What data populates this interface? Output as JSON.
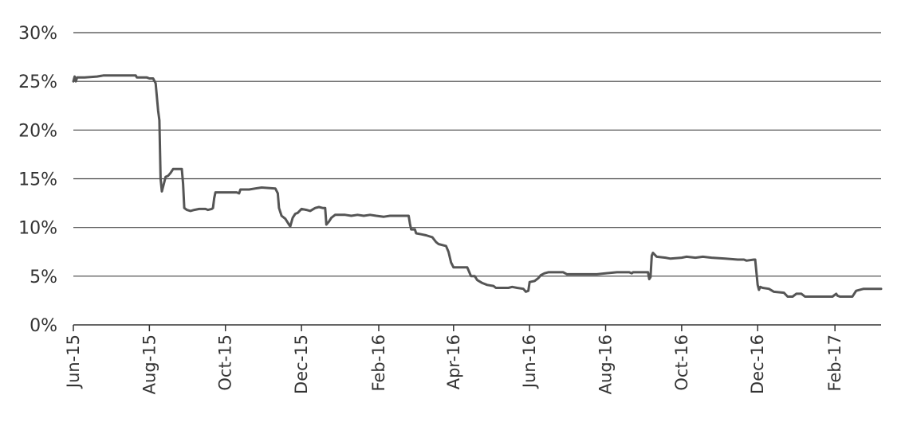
{
  "chart_data": {
    "type": "line",
    "title": "",
    "xlabel": "",
    "ylabel": "",
    "ylim": [
      0,
      30
    ],
    "xlim": [
      "2015-06-01",
      "2017-03-10"
    ],
    "grid": "horizontal",
    "y_ticks": [
      {
        "value": 0,
        "label": "0%"
      },
      {
        "value": 5,
        "label": "5%"
      },
      {
        "value": 10,
        "label": "10%"
      },
      {
        "value": 15,
        "label": "15%"
      },
      {
        "value": 20,
        "label": "20%"
      },
      {
        "value": 25,
        "label": "25%"
      },
      {
        "value": 30,
        "label": "30%"
      }
    ],
    "x_ticks": [
      {
        "date": "2015-06-01",
        "label": "Jun-15"
      },
      {
        "date": "2015-08-01",
        "label": "Aug-15"
      },
      {
        "date": "2015-10-01",
        "label": "Oct-15"
      },
      {
        "date": "2015-12-01",
        "label": "Dec-15"
      },
      {
        "date": "2016-02-01",
        "label": "Feb-16"
      },
      {
        "date": "2016-04-01",
        "label": "Apr-16"
      },
      {
        "date": "2016-06-01",
        "label": "Jun-16"
      },
      {
        "date": "2016-08-01",
        "label": "Aug-16"
      },
      {
        "date": "2016-10-01",
        "label": "Oct-16"
      },
      {
        "date": "2016-12-01",
        "label": "Dec-16"
      },
      {
        "date": "2017-02-01",
        "label": "Feb-17"
      }
    ],
    "series": [
      {
        "color": "#555555",
        "points": [
          [
            "2015-06-01",
            25.0
          ],
          [
            "2015-06-02",
            25.5
          ],
          [
            "2015-06-03",
            25.0
          ],
          [
            "2015-06-04",
            25.4
          ],
          [
            "2015-06-10",
            25.4
          ],
          [
            "2015-06-20",
            25.5
          ],
          [
            "2015-06-25",
            25.6
          ],
          [
            "2015-07-15",
            25.6
          ],
          [
            "2015-07-21",
            25.6
          ],
          [
            "2015-07-22",
            25.4
          ],
          [
            "2015-07-30",
            25.4
          ],
          [
            "2015-08-01",
            25.3
          ],
          [
            "2015-08-04",
            25.3
          ],
          [
            "2015-08-06",
            24.8
          ],
          [
            "2015-08-08",
            22.0
          ],
          [
            "2015-08-09",
            21.0
          ],
          [
            "2015-08-10",
            15.0
          ],
          [
            "2015-08-11",
            13.7
          ],
          [
            "2015-08-12",
            14.2
          ],
          [
            "2015-08-14",
            15.2
          ],
          [
            "2015-08-16",
            15.3
          ],
          [
            "2015-08-18",
            15.6
          ],
          [
            "2015-08-20",
            16.0
          ],
          [
            "2015-08-25",
            16.0
          ],
          [
            "2015-08-27",
            16.0
          ],
          [
            "2015-08-28",
            14.5
          ],
          [
            "2015-08-29",
            12.0
          ],
          [
            "2015-08-31",
            11.8
          ],
          [
            "2015-09-03",
            11.7
          ],
          [
            "2015-09-06",
            11.8
          ],
          [
            "2015-09-10",
            11.9
          ],
          [
            "2015-09-15",
            11.9
          ],
          [
            "2015-09-17",
            11.8
          ],
          [
            "2015-09-20",
            11.9
          ],
          [
            "2015-09-21",
            12.0
          ],
          [
            "2015-09-22",
            13.0
          ],
          [
            "2015-09-23",
            13.6
          ],
          [
            "2015-09-30",
            13.6
          ],
          [
            "2015-10-05",
            13.6
          ],
          [
            "2015-10-10",
            13.6
          ],
          [
            "2015-10-12",
            13.5
          ],
          [
            "2015-10-13",
            13.9
          ],
          [
            "2015-10-20",
            13.9
          ],
          [
            "2015-10-25",
            14.0
          ],
          [
            "2015-10-30",
            14.1
          ],
          [
            "2015-11-10",
            14.0
          ],
          [
            "2015-11-12",
            13.5
          ],
          [
            "2015-11-13",
            12.0
          ],
          [
            "2015-11-15",
            11.2
          ],
          [
            "2015-11-18",
            10.9
          ],
          [
            "2015-11-20",
            10.5
          ],
          [
            "2015-11-22",
            10.1
          ],
          [
            "2015-11-24",
            11.0
          ],
          [
            "2015-11-26",
            11.4
          ],
          [
            "2015-11-28",
            11.5
          ],
          [
            "2015-12-01",
            11.9
          ],
          [
            "2015-12-05",
            11.8
          ],
          [
            "2015-12-08",
            11.7
          ],
          [
            "2015-12-12",
            12.0
          ],
          [
            "2015-12-15",
            12.1
          ],
          [
            "2015-12-18",
            12.0
          ],
          [
            "2015-12-20",
            12.0
          ],
          [
            "2015-12-21",
            10.3
          ],
          [
            "2015-12-23",
            10.6
          ],
          [
            "2015-12-25",
            11.0
          ],
          [
            "2015-12-28",
            11.3
          ],
          [
            "2016-01-05",
            11.3
          ],
          [
            "2016-01-10",
            11.2
          ],
          [
            "2016-01-15",
            11.3
          ],
          [
            "2016-01-20",
            11.2
          ],
          [
            "2016-01-25",
            11.3
          ],
          [
            "2016-01-30",
            11.2
          ],
          [
            "2016-02-05",
            11.1
          ],
          [
            "2016-02-10",
            11.2
          ],
          [
            "2016-02-25",
            11.2
          ],
          [
            "2016-02-26",
            10.4
          ],
          [
            "2016-02-27",
            9.8
          ],
          [
            "2016-03-01",
            9.8
          ],
          [
            "2016-03-02",
            9.4
          ],
          [
            "2016-03-06",
            9.3
          ],
          [
            "2016-03-10",
            9.2
          ],
          [
            "2016-03-15",
            9.0
          ],
          [
            "2016-03-18",
            8.5
          ],
          [
            "2016-03-20",
            8.3
          ],
          [
            "2016-03-26",
            8.1
          ],
          [
            "2016-03-28",
            7.5
          ],
          [
            "2016-03-30",
            6.4
          ],
          [
            "2016-04-01",
            5.9
          ],
          [
            "2016-04-08",
            5.9
          ],
          [
            "2016-04-12",
            5.9
          ],
          [
            "2016-04-13",
            5.6
          ],
          [
            "2016-04-15",
            5.0
          ],
          [
            "2016-04-18",
            5.0
          ],
          [
            "2016-04-20",
            4.6
          ],
          [
            "2016-04-24",
            4.3
          ],
          [
            "2016-04-28",
            4.1
          ],
          [
            "2016-05-03",
            4.0
          ],
          [
            "2016-05-05",
            3.8
          ],
          [
            "2016-05-15",
            3.8
          ],
          [
            "2016-05-18",
            3.9
          ],
          [
            "2016-05-22",
            3.8
          ],
          [
            "2016-05-27",
            3.7
          ],
          [
            "2016-05-29",
            3.4
          ],
          [
            "2016-05-31",
            3.5
          ],
          [
            "2016-06-01",
            4.4
          ],
          [
            "2016-06-05",
            4.5
          ],
          [
            "2016-06-08",
            4.8
          ],
          [
            "2016-06-10",
            5.1
          ],
          [
            "2016-06-13",
            5.3
          ],
          [
            "2016-06-16",
            5.4
          ],
          [
            "2016-06-28",
            5.4
          ],
          [
            "2016-07-01",
            5.2
          ],
          [
            "2016-07-15",
            5.2
          ],
          [
            "2016-07-25",
            5.2
          ],
          [
            "2016-08-01",
            5.3
          ],
          [
            "2016-08-10",
            5.4
          ],
          [
            "2016-08-20",
            5.4
          ],
          [
            "2016-08-22",
            5.3
          ],
          [
            "2016-08-23",
            5.4
          ],
          [
            "2016-09-04",
            5.4
          ],
          [
            "2016-09-05",
            4.7
          ],
          [
            "2016-09-06",
            4.9
          ],
          [
            "2016-09-07",
            7.1
          ],
          [
            "2016-09-08",
            7.4
          ],
          [
            "2016-09-11",
            7.0
          ],
          [
            "2016-09-18",
            6.9
          ],
          [
            "2016-09-22",
            6.8
          ],
          [
            "2016-10-01",
            6.9
          ],
          [
            "2016-10-05",
            7.0
          ],
          [
            "2016-10-12",
            6.9
          ],
          [
            "2016-10-18",
            7.0
          ],
          [
            "2016-10-25",
            6.9
          ],
          [
            "2016-11-05",
            6.8
          ],
          [
            "2016-11-15",
            6.7
          ],
          [
            "2016-11-20",
            6.7
          ],
          [
            "2016-11-22",
            6.6
          ],
          [
            "2016-11-28",
            6.7
          ],
          [
            "2016-11-29",
            6.7
          ],
          [
            "2016-12-01",
            4.1
          ],
          [
            "2016-12-02",
            3.6
          ],
          [
            "2016-12-03",
            3.9
          ],
          [
            "2016-12-05",
            3.8
          ],
          [
            "2016-12-10",
            3.7
          ],
          [
            "2016-12-14",
            3.4
          ],
          [
            "2016-12-22",
            3.3
          ],
          [
            "2016-12-25",
            2.9
          ],
          [
            "2016-12-29",
            2.9
          ],
          [
            "2017-01-01",
            3.2
          ],
          [
            "2017-01-05",
            3.2
          ],
          [
            "2017-01-08",
            2.9
          ],
          [
            "2017-01-15",
            2.9
          ],
          [
            "2017-01-30",
            2.9
          ],
          [
            "2017-02-02",
            3.2
          ],
          [
            "2017-02-03",
            3.0
          ],
          [
            "2017-02-05",
            2.9
          ],
          [
            "2017-02-15",
            2.9
          ],
          [
            "2017-02-18",
            3.5
          ],
          [
            "2017-02-24",
            3.7
          ],
          [
            "2017-03-10",
            3.7
          ]
        ]
      }
    ]
  },
  "colors": {
    "line": "#555555",
    "grid": "#444444",
    "axis": "#333333",
    "text": "#333333"
  }
}
